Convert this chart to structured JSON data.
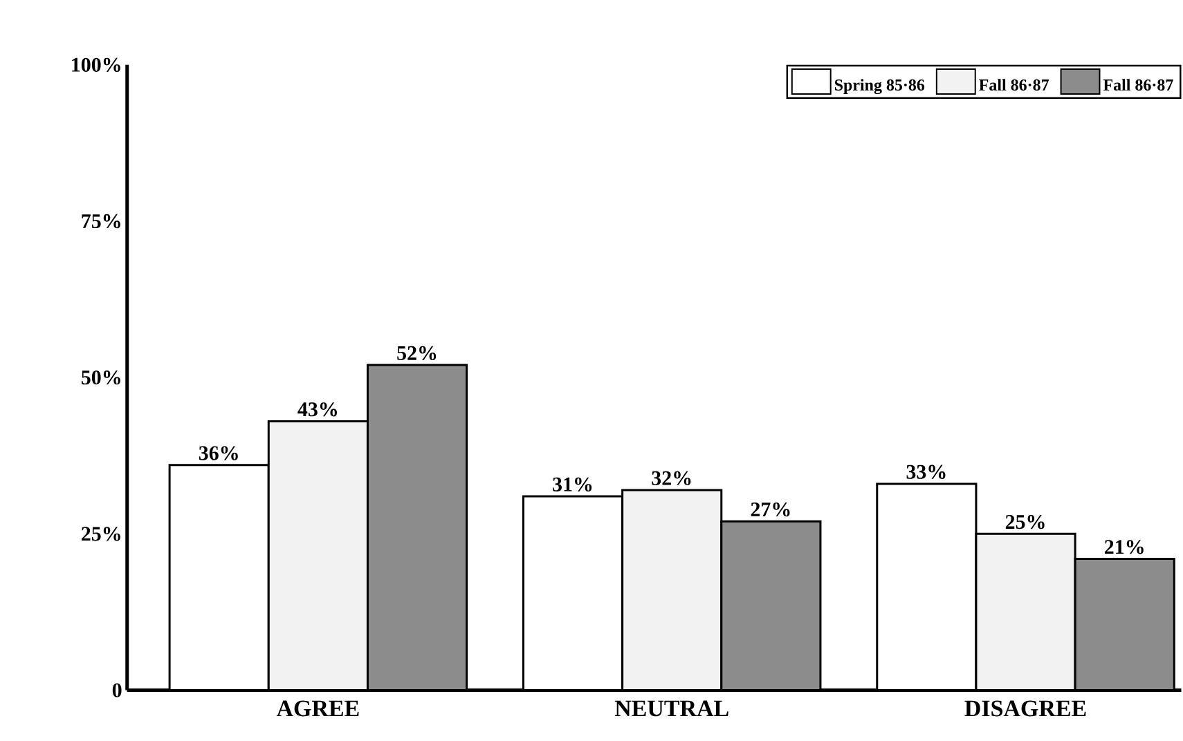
{
  "chart_data": {
    "type": "bar",
    "categories": [
      "AGREE",
      "NEUTRAL",
      "DISAGREE"
    ],
    "series": [
      {
        "name": "Spring 85·86",
        "color": "#ffffff",
        "values": [
          36,
          31,
          33
        ],
        "value_labels": [
          "36%",
          "31%",
          "33%"
        ]
      },
      {
        "name": "Fall 86·87",
        "color": "#f2f2f2",
        "values": [
          43,
          32,
          25
        ],
        "value_labels": [
          "43%",
          "32%",
          "25%"
        ]
      },
      {
        "name": "Fall 86·87",
        "color": "#8c8c8c",
        "values": [
          52,
          27,
          21
        ],
        "value_labels": [
          "52%",
          "27%",
          "21%"
        ]
      }
    ],
    "ylim": [
      0,
      100
    ],
    "yticks": [
      0,
      {
        "value": 25,
        "label": "25%"
      },
      {
        "value": 50,
        "label": "50%"
      },
      {
        "value": 75,
        "label": "75%"
      },
      {
        "value": 100,
        "label": "100%"
      }
    ],
    "grid": false,
    "legend": "top right"
  }
}
